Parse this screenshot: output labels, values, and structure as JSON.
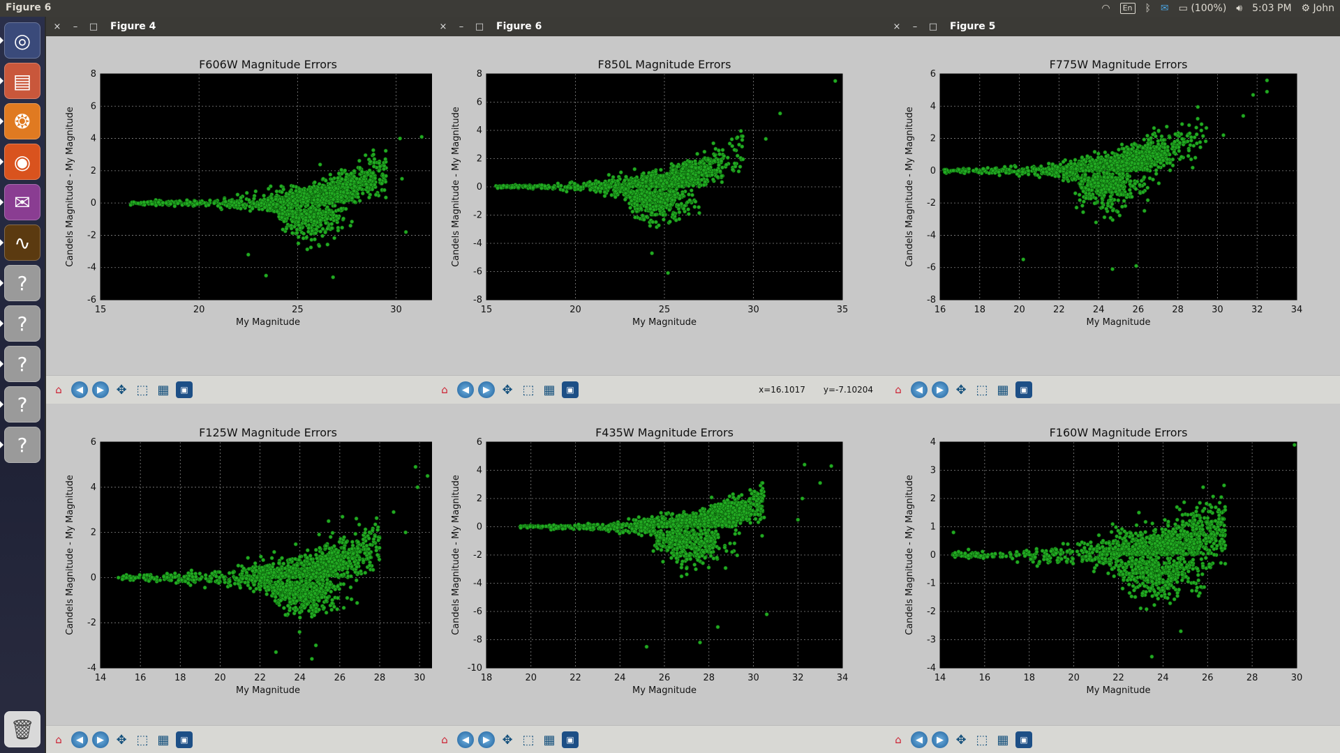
{
  "topbar": {
    "app_title": "Figure 6",
    "keyboard_layout": "En",
    "battery": "(100%)",
    "time": "5:03 PM",
    "user": "John"
  },
  "launcher": {
    "items": [
      {
        "name": "dash-home-icon",
        "glyph": "◎",
        "color": "#3a4a7a"
      },
      {
        "name": "files-icon",
        "glyph": "▤",
        "color": "#c9573b"
      },
      {
        "name": "app-orange-icon",
        "glyph": "❂",
        "color": "#e07a21"
      },
      {
        "name": "firefox-icon",
        "glyph": "◉",
        "color": "#d9531e"
      },
      {
        "name": "pidgin-icon",
        "glyph": "✉",
        "color": "#8a3d92"
      },
      {
        "name": "oscilloscope-icon",
        "glyph": "∿",
        "color": "#5b3a10"
      },
      {
        "name": "unknown-app-icon",
        "glyph": "?",
        "color": "#9a9a9a"
      },
      {
        "name": "unknown-app-icon",
        "glyph": "?",
        "color": "#9a9a9a"
      },
      {
        "name": "unknown-app-icon",
        "glyph": "?",
        "color": "#9a9a9a"
      },
      {
        "name": "unknown-app-icon",
        "glyph": "?",
        "color": "#9a9a9a"
      },
      {
        "name": "unknown-app-icon",
        "glyph": "?",
        "color": "#9a9a9a"
      }
    ],
    "trash": {
      "name": "trash-icon",
      "glyph": "🗑"
    }
  },
  "windows": [
    {
      "id": "fig4",
      "title": "Figure 4",
      "close": "×",
      "minimize": "–",
      "maximize": "□"
    },
    {
      "id": "fig6",
      "title": "Figure 6",
      "close": "×",
      "minimize": "–",
      "maximize": "□",
      "coords": {
        "x": "x=16.1017",
        "y": "y=-7.10204"
      }
    },
    {
      "id": "fig5",
      "title": "Figure 5",
      "close": "×",
      "minimize": "–",
      "maximize": "□"
    }
  ],
  "toolbar_icons": [
    "home-icon",
    "back-icon",
    "forward-icon",
    "pan-icon",
    "zoom-icon",
    "subplots-icon",
    "save-icon"
  ],
  "colors": {
    "plot_bg": "#000000",
    "marker": "#22aa22",
    "marker_edge": "#0c5a0c",
    "grid": "#888888"
  },
  "chart_data": [
    {
      "type": "scatter",
      "title": "F606W Magnitude Errors",
      "xlabel": "My Magnitude",
      "ylabel": "Candels Magnitude - My Magnitude",
      "xlim": [
        15,
        32
      ],
      "ylim": [
        -6,
        8
      ],
      "xticks": [
        15,
        20,
        25,
        30
      ],
      "yticks": [
        -6,
        -4,
        -2,
        0,
        2,
        4,
        6,
        8
      ],
      "grid": true,
      "shape": {
        "x0": 16.5,
        "x1": 29.5,
        "center": 26,
        "spread_hi": 1.8,
        "spread_lo": 2.2,
        "n": 1400
      },
      "outliers": [
        [
          31.3,
          4.1
        ],
        [
          30.2,
          4.0
        ],
        [
          30.3,
          1.5
        ],
        [
          29.4,
          2.3
        ],
        [
          30.5,
          -1.8
        ],
        [
          23.4,
          -4.5
        ],
        [
          26.8,
          -4.6
        ],
        [
          22.5,
          -3.2
        ]
      ]
    },
    {
      "type": "scatter",
      "title": "F850L Magnitude Errors",
      "xlabel": "My Magnitude",
      "ylabel": "Candels Magnitude - My Magnitude",
      "xlim": [
        15,
        35
      ],
      "ylim": [
        -8,
        8
      ],
      "xticks": [
        15,
        20,
        25,
        30,
        35
      ],
      "yticks": [
        -8,
        -6,
        -4,
        -2,
        0,
        2,
        4,
        6,
        8
      ],
      "grid": true,
      "shape": {
        "x0": 15.5,
        "x1": 29.5,
        "center": 25,
        "spread_hi": 2.2,
        "spread_lo": 2.4,
        "n": 1500
      },
      "outliers": [
        [
          34.6,
          7.5
        ],
        [
          31.5,
          5.2
        ],
        [
          30.7,
          3.4
        ],
        [
          25.2,
          -6.1
        ],
        [
          24.3,
          -4.7
        ]
      ]
    },
    {
      "type": "scatter",
      "title": "F775W Magnitude Errors",
      "xlabel": "My Magnitude",
      "ylabel": "Candels Magnitude - My Magnitude",
      "xlim": [
        16,
        34
      ],
      "ylim": [
        -8,
        6
      ],
      "xticks": [
        16,
        18,
        20,
        22,
        24,
        26,
        28,
        30,
        32,
        34
      ],
      "yticks": [
        -8,
        -6,
        -4,
        -2,
        0,
        2,
        4,
        6
      ],
      "grid": true,
      "shape": {
        "x0": 16.2,
        "x1": 29.5,
        "center": 24.8,
        "spread_hi": 2.0,
        "spread_lo": 2.5,
        "n": 1500
      },
      "outliers": [
        [
          32.5,
          5.6
        ],
        [
          32.5,
          4.9
        ],
        [
          31.8,
          4.7
        ],
        [
          31.3,
          3.4
        ],
        [
          20.2,
          -5.5
        ],
        [
          24.7,
          -6.1
        ],
        [
          25.9,
          -5.9
        ],
        [
          30.3,
          2.2
        ]
      ]
    },
    {
      "type": "scatter",
      "title": "F125W Magnitude Errors",
      "xlabel": "My Magnitude",
      "ylabel": "Candels Magnitude - My Magnitude",
      "xlim": [
        14,
        30.8
      ],
      "ylim": [
        -4,
        6
      ],
      "xticks": [
        14,
        16,
        18,
        20,
        22,
        24,
        26,
        28,
        30
      ],
      "yticks": [
        -4,
        -2,
        0,
        2,
        4,
        6
      ],
      "grid": true,
      "shape": {
        "x0": 14.8,
        "x1": 28,
        "center": 24.5,
        "spread_hi": 1.4,
        "spread_lo": 1.5,
        "n": 1500
      },
      "outliers": [
        [
          29.8,
          4.9
        ],
        [
          29.9,
          4.0
        ],
        [
          30.4,
          4.5
        ],
        [
          29.3,
          2.0
        ],
        [
          24.6,
          -3.6
        ],
        [
          24.8,
          -3.0
        ],
        [
          22.8,
          -3.3
        ],
        [
          28.7,
          2.9
        ]
      ]
    },
    {
      "type": "scatter",
      "title": "F435W Magnitude Errors",
      "xlabel": "My Magnitude",
      "ylabel": "Candels Magnitude - My Magnitude",
      "xlim": [
        18,
        34
      ],
      "ylim": [
        -10,
        6
      ],
      "xticks": [
        18,
        20,
        22,
        24,
        26,
        28,
        30,
        32,
        34
      ],
      "yticks": [
        -10,
        -8,
        -6,
        -4,
        -2,
        0,
        2,
        4,
        6
      ],
      "grid": true,
      "shape": {
        "x0": 19.5,
        "x1": 30.5,
        "center": 27.5,
        "spread_hi": 1.6,
        "spread_lo": 3.0,
        "n": 1600
      },
      "outliers": [
        [
          32.3,
          4.4
        ],
        [
          33.5,
          4.3
        ],
        [
          33,
          3.1
        ],
        [
          32.2,
          2.0
        ],
        [
          32,
          0.5
        ],
        [
          25.2,
          -8.5
        ],
        [
          27.6,
          -8.2
        ],
        [
          28.4,
          -7.1
        ],
        [
          30.6,
          -6.2
        ]
      ]
    },
    {
      "type": "scatter",
      "title": "F160W Magnitude Errors",
      "xlabel": "My Magnitude",
      "ylabel": "Candels Magnitude - My Magnitude",
      "xlim": [
        14,
        30
      ],
      "ylim": [
        -4,
        4
      ],
      "xticks": [
        14,
        16,
        18,
        20,
        22,
        24,
        26,
        28,
        30
      ],
      "yticks": [
        -4,
        -3,
        -2,
        -1,
        0,
        1,
        2,
        3,
        4
      ],
      "grid": true,
      "shape": {
        "x0": 14.5,
        "x1": 26.8,
        "center": 24,
        "spread_hi": 0.9,
        "spread_lo": 1.2,
        "n": 1500
      },
      "outliers": [
        [
          29.9,
          3.9
        ],
        [
          25.8,
          2.4
        ],
        [
          23.5,
          -3.6
        ],
        [
          24.8,
          -2.7
        ],
        [
          26.5,
          1.6
        ],
        [
          14.6,
          0.8
        ]
      ]
    }
  ]
}
